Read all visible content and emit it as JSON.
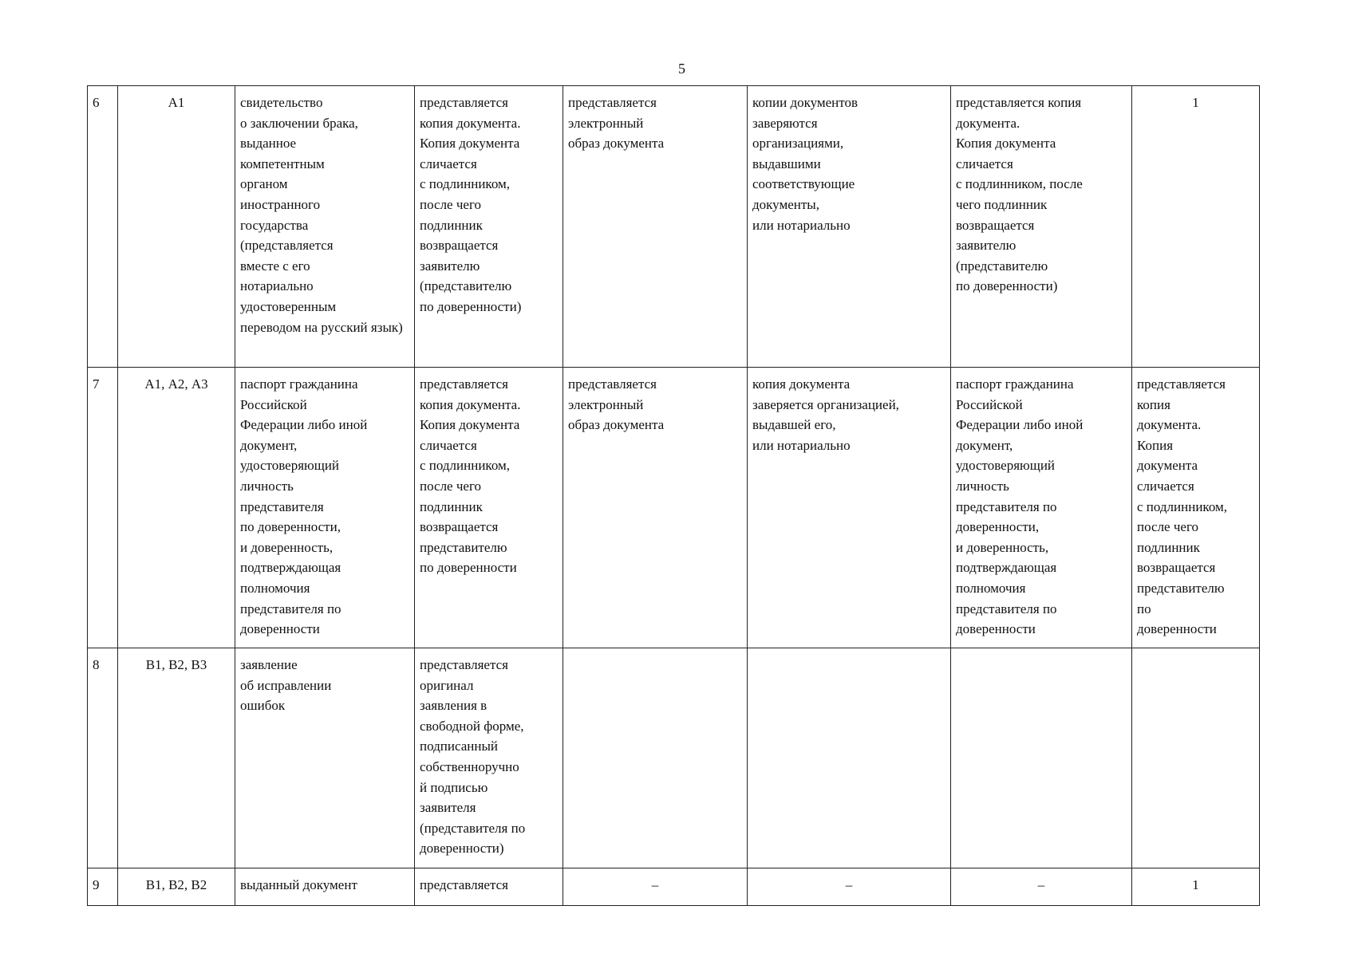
{
  "page_number": "5",
  "rows": [
    {
      "num": "6",
      "code": "А1",
      "document": "свидетельство\nо заключении брака, выданное\nкомпетентным\nорганом\nиностранного\nгосударства\n(представляется\nвместе с его\nнотариально\nудостоверенным\nпереводом на русский язык)",
      "c4": "представляется\nкопия документа.\nКопия документа\nсличается\nс подлинником,\nпосле чего\nподлинник\nвозвращается\nзаявителю\n(представителю\nпо доверенности)",
      "c5": "представляется\nэлектронный\nобраз документа",
      "c6": "копии документов\nзаверяются\nорганизациями,\nвыдавшими\nсоответствующие\nдокументы,\nили нотариально",
      "c7": "представляется копия\nдокумента.\nКопия документа\nсличается\nс подлинником, после\nчего подлинник\nвозвращается\nзаявителю\n(представителю\nпо доверенности)",
      "c8": "1"
    },
    {
      "num": "7",
      "code": "А1, А2, А3",
      "document": "паспорт гражданина\nРоссийской\nФедерации либо иной\nдокумент,\nудостоверяющий\nличность\nпредставителя\nпо доверенности,\nи доверенность,\nподтверждающая\nполномочия\nпредставителя по\nдоверенности",
      "c4": "представляется\nкопия документа.\nКопия документа\nсличается\nс подлинником,\nпосле чего\nподлинник\nвозвращается\nпредставителю\nпо доверенности",
      "c5": "представляется\nэлектронный\nобраз документа",
      "c6": "копия документа\nзаверяется организацией,\nвыдавшей его,\nили нотариально",
      "c7": "паспорт гражданина\nРоссийской\nФедерации либо иной\nдокумент,\nудостоверяющий\nличность\nпредставителя по\nдоверенности,\nи доверенность,\nподтверждающая\nполномочия\nпредставителя по\nдоверенности",
      "c8": "представляется\nкопия\nдокумента.\nКопия\nдокумента\nсличается\nс подлинником,\nпосле чего\nподлинник\nвозвращается\nпредставителю\nпо\nдоверенности"
    },
    {
      "num": "8",
      "code": "В1, В2, В3",
      "document": "заявление\nоб исправлении\nошибок",
      "c4": "представляется\nоригинал\nзаявления в\nсвободной форме,\nподписанный\nсобственноручно\nй подписью\nзаявителя\n(представителя по\nдоверенности)",
      "c5": "",
      "c6": "",
      "c7": "",
      "c8": ""
    },
    {
      "num": "9",
      "code": "В1, В2, В2",
      "document": "выданный документ",
      "c4": "представляется",
      "c5": "–",
      "c6": "–",
      "c7": "–",
      "c8": "1"
    }
  ]
}
